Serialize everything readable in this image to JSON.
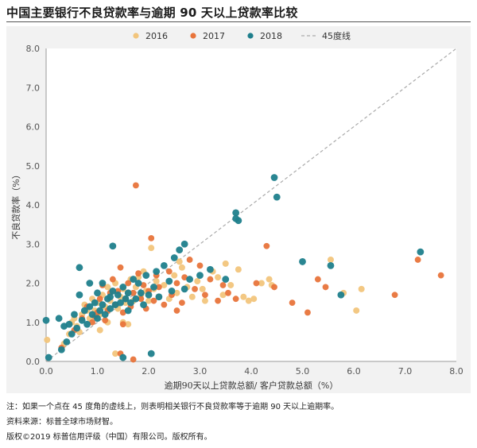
{
  "header": {
    "title": "中国主要银行不良贷款率与逾期 90 天以上贷款率比较"
  },
  "footer": {
    "note": "注：如果一个点在 45 度角的虚线上，则表明相关银行不良贷款率等于逾期 90 天以上逾期率。",
    "source": "资料来源：标普全球市场财智。",
    "copyright": "版权©2019 标普信用评级（中国）有限公司。版权所有。"
  },
  "colors": {
    "s2016": "#f2c57c",
    "s2017": "#e8743b",
    "s2018": "#1f7f8c",
    "diag": "#aaaaaa"
  },
  "chart_data": {
    "type": "scatter",
    "xlabel": "逾期90天以上贷款总额/ 客户贷款总额（%）",
    "ylabel": "不良贷款率（%）",
    "xlim": [
      0,
      8
    ],
    "ylim": [
      0,
      8
    ],
    "xticks": [
      "0.0",
      "1.0",
      "2.0",
      "3.0",
      "4.0",
      "5.0",
      "6.0",
      "7.0",
      "8.0"
    ],
    "yticks": [
      "0.0",
      "1.0",
      "2.0",
      "3.0",
      "4.0",
      "5.0",
      "6.0",
      "7.0",
      "8.0"
    ],
    "legend_position": "top",
    "reference_line": {
      "name": "45度线",
      "from": [
        0,
        0
      ],
      "to": [
        8,
        8
      ]
    },
    "series": [
      {
        "name": "2016",
        "color": "#f2c57c",
        "points": [
          [
            0.02,
            0.55
          ],
          [
            0.35,
            0.45
          ],
          [
            0.45,
            0.7
          ],
          [
            0.5,
            1.0
          ],
          [
            0.55,
            1.1
          ],
          [
            0.6,
            0.9
          ],
          [
            0.7,
            1.2
          ],
          [
            0.75,
            1.45
          ],
          [
            0.8,
            1.3
          ],
          [
            0.85,
            1.1
          ],
          [
            0.9,
            1.6
          ],
          [
            0.95,
            1.3
          ],
          [
            1.0,
            1.5
          ],
          [
            1.05,
            1.2
          ],
          [
            1.1,
            1.7
          ],
          [
            1.15,
            1.4
          ],
          [
            1.2,
            1.9
          ],
          [
            1.25,
            1.55
          ],
          [
            1.3,
            1.8
          ],
          [
            1.35,
            2.0
          ],
          [
            1.4,
            1.35
          ],
          [
            1.45,
            1.65
          ],
          [
            1.5,
            1.85
          ],
          [
            1.55,
            1.5
          ],
          [
            1.6,
            1.75
          ],
          [
            1.65,
            2.1
          ],
          [
            1.7,
            1.55
          ],
          [
            1.75,
            1.9
          ],
          [
            1.8,
            2.15
          ],
          [
            1.85,
            1.7
          ],
          [
            1.9,
            2.3
          ],
          [
            1.95,
            1.8
          ],
          [
            2.0,
            1.55
          ],
          [
            2.05,
            2.9
          ],
          [
            2.1,
            1.85
          ],
          [
            2.15,
            2.05
          ],
          [
            2.2,
            1.65
          ],
          [
            2.3,
            1.95
          ],
          [
            2.4,
            1.6
          ],
          [
            2.5,
            2.2
          ],
          [
            2.55,
            1.75
          ],
          [
            2.65,
            2.4
          ],
          [
            2.75,
            1.9
          ],
          [
            2.85,
            1.65
          ],
          [
            2.95,
            2.05
          ],
          [
            3.05,
            1.85
          ],
          [
            3.1,
            1.55
          ],
          [
            3.25,
            2.3
          ],
          [
            3.35,
            2.15
          ],
          [
            3.45,
            1.7
          ],
          [
            3.5,
            2.5
          ],
          [
            3.6,
            1.95
          ],
          [
            3.75,
            2.35
          ],
          [
            3.85,
            1.65
          ],
          [
            3.95,
            1.55
          ],
          [
            4.05,
            1.6
          ],
          [
            4.2,
            2.0
          ],
          [
            4.35,
            2.1
          ],
          [
            4.4,
            1.95
          ],
          [
            5.55,
            2.6
          ],
          [
            5.8,
            1.75
          ],
          [
            6.05,
            1.3
          ],
          [
            6.15,
            1.85
          ],
          [
            1.5,
            1.0
          ],
          [
            1.6,
            0.95
          ],
          [
            1.2,
            1.0
          ],
          [
            1.05,
            0.8
          ],
          [
            0.65,
            0.75
          ],
          [
            2.6,
            2.55
          ],
          [
            1.35,
            0.2
          ]
        ]
      },
      {
        "name": "2017",
        "color": "#e8743b",
        "points": [
          [
            0.3,
            0.35
          ],
          [
            0.55,
            0.8
          ],
          [
            0.7,
            1.1
          ],
          [
            0.8,
            1.4
          ],
          [
            0.9,
            1.0
          ],
          [
            1.0,
            1.25
          ],
          [
            1.05,
            1.6
          ],
          [
            1.1,
            1.95
          ],
          [
            1.2,
            1.3
          ],
          [
            1.25,
            1.75
          ],
          [
            1.3,
            2.1
          ],
          [
            1.35,
            1.45
          ],
          [
            1.4,
            1.8
          ],
          [
            1.45,
            2.4
          ],
          [
            1.5,
            1.25
          ],
          [
            1.55,
            1.6
          ],
          [
            1.6,
            2.0
          ],
          [
            1.65,
            1.4
          ],
          [
            1.7,
            1.75
          ],
          [
            1.75,
            4.5
          ],
          [
            1.8,
            2.25
          ],
          [
            1.85,
            1.6
          ],
          [
            1.9,
            1.95
          ],
          [
            1.95,
            1.35
          ],
          [
            2.0,
            1.8
          ],
          [
            2.05,
            3.15
          ],
          [
            2.1,
            1.55
          ],
          [
            2.15,
            2.2
          ],
          [
            2.2,
            1.9
          ],
          [
            2.3,
            1.45
          ],
          [
            2.4,
            2.3
          ],
          [
            2.45,
            1.7
          ],
          [
            2.55,
            2.0
          ],
          [
            2.65,
            1.5
          ],
          [
            2.8,
            2.6
          ],
          [
            2.9,
            1.85
          ],
          [
            3.0,
            2.45
          ],
          [
            3.1,
            1.7
          ],
          [
            3.2,
            2.1
          ],
          [
            3.35,
            1.55
          ],
          [
            3.45,
            1.95
          ],
          [
            3.55,
            1.75
          ],
          [
            3.7,
            1.6
          ],
          [
            4.1,
            2.0
          ],
          [
            4.3,
            2.95
          ],
          [
            4.45,
            1.9
          ],
          [
            4.8,
            1.5
          ],
          [
            5.1,
            1.25
          ],
          [
            5.3,
            2.1
          ],
          [
            5.45,
            1.9
          ],
          [
            6.8,
            1.7
          ],
          [
            7.25,
            2.6
          ],
          [
            7.7,
            2.2
          ],
          [
            1.45,
            0.2
          ],
          [
            1.7,
            0.05
          ],
          [
            1.15,
            1.05
          ],
          [
            0.95,
            1.15
          ],
          [
            2.55,
            1.3
          ],
          [
            2.7,
            2.15
          ],
          [
            1.5,
            0.95
          ]
        ]
      },
      {
        "name": "2018",
        "color": "#1f7f8c",
        "points": [
          [
            0.0,
            1.05
          ],
          [
            0.05,
            0.1
          ],
          [
            0.25,
            1.1
          ],
          [
            0.3,
            0.3
          ],
          [
            0.35,
            0.9
          ],
          [
            0.4,
            0.5
          ],
          [
            0.45,
            0.95
          ],
          [
            0.5,
            0.7
          ],
          [
            0.55,
            1.2
          ],
          [
            0.6,
            0.85
          ],
          [
            0.65,
            1.7
          ],
          [
            0.65,
            2.4
          ],
          [
            0.7,
            1.05
          ],
          [
            0.75,
            1.3
          ],
          [
            0.8,
            0.95
          ],
          [
            0.85,
            2.0
          ],
          [
            0.9,
            1.2
          ],
          [
            0.95,
            1.5
          ],
          [
            1.0,
            1.1
          ],
          [
            1.0,
            1.75
          ],
          [
            1.05,
            1.3
          ],
          [
            1.1,
            1.45
          ],
          [
            1.1,
            2.0
          ],
          [
            1.15,
            1.2
          ],
          [
            1.2,
            1.6
          ],
          [
            1.25,
            1.35
          ],
          [
            1.3,
            1.8
          ],
          [
            1.3,
            2.95
          ],
          [
            1.35,
            1.45
          ],
          [
            1.4,
            1.7
          ],
          [
            1.45,
            1.5
          ],
          [
            1.5,
            1.9
          ],
          [
            1.5,
            0.1
          ],
          [
            1.55,
            1.6
          ],
          [
            1.6,
            1.75
          ],
          [
            1.65,
            1.5
          ],
          [
            1.7,
            2.1
          ],
          [
            1.75,
            1.6
          ],
          [
            1.8,
            2.0
          ],
          [
            1.85,
            1.75
          ],
          [
            1.9,
            1.45
          ],
          [
            1.95,
            2.2
          ],
          [
            2.0,
            1.7
          ],
          [
            2.05,
            0.2
          ],
          [
            2.1,
            1.9
          ],
          [
            2.15,
            2.3
          ],
          [
            2.2,
            1.65
          ],
          [
            2.3,
            2.45
          ],
          [
            2.4,
            2.05
          ],
          [
            2.45,
            1.8
          ],
          [
            2.5,
            2.65
          ],
          [
            2.6,
            2.85
          ],
          [
            2.7,
            3.0
          ],
          [
            2.7,
            1.85
          ],
          [
            2.8,
            2.1
          ],
          [
            3.0,
            2.2
          ],
          [
            3.2,
            2.35
          ],
          [
            3.5,
            2.1
          ],
          [
            3.7,
            3.8
          ],
          [
            3.75,
            3.6
          ],
          [
            3.7,
            3.65
          ],
          [
            4.45,
            4.7
          ],
          [
            4.5,
            4.2
          ],
          [
            5.0,
            2.55
          ],
          [
            5.55,
            2.45
          ],
          [
            5.75,
            1.7
          ],
          [
            7.3,
            2.8
          ],
          [
            0.85,
            1.4
          ],
          [
            1.25,
            1.65
          ],
          [
            1.6,
            1.3
          ]
        ]
      }
    ]
  }
}
